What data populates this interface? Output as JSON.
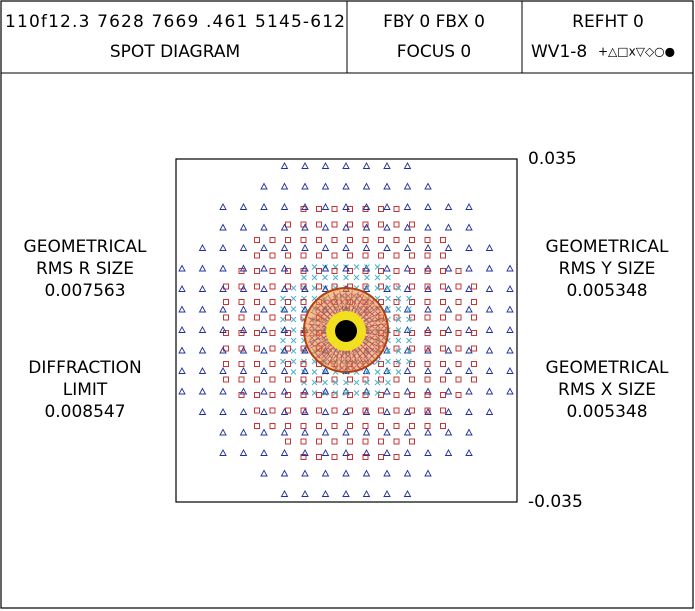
{
  "header": {
    "lens": "110f12.3 7628 7669 .461 5145-612",
    "title": "SPOT DIAGRAM",
    "field": "FBY 0 FBX 0",
    "focus": "FOCUS 0",
    "refht": "REFHT 0",
    "wavelengths": "WV1-8",
    "symbols": "+△□x▽◇○●"
  },
  "plot": {
    "top_label": "0.035",
    "bottom_label": "-0.035"
  },
  "left_stats": [
    {
      "lines": [
        "GEOMETRICAL",
        "RMS R SIZE"
      ],
      "value": "0.007563"
    },
    {
      "lines": [
        "DIFFRACTION",
        "LIMIT"
      ],
      "value": "0.008547"
    }
  ],
  "right_stats": [
    {
      "lines": [
        "GEOMETRICAL",
        "RMS Y SIZE"
      ],
      "value": "0.005348"
    },
    {
      "lines": [
        "GEOMETRICAL",
        "RMS X SIZE"
      ],
      "value": "0.005348"
    }
  ]
}
